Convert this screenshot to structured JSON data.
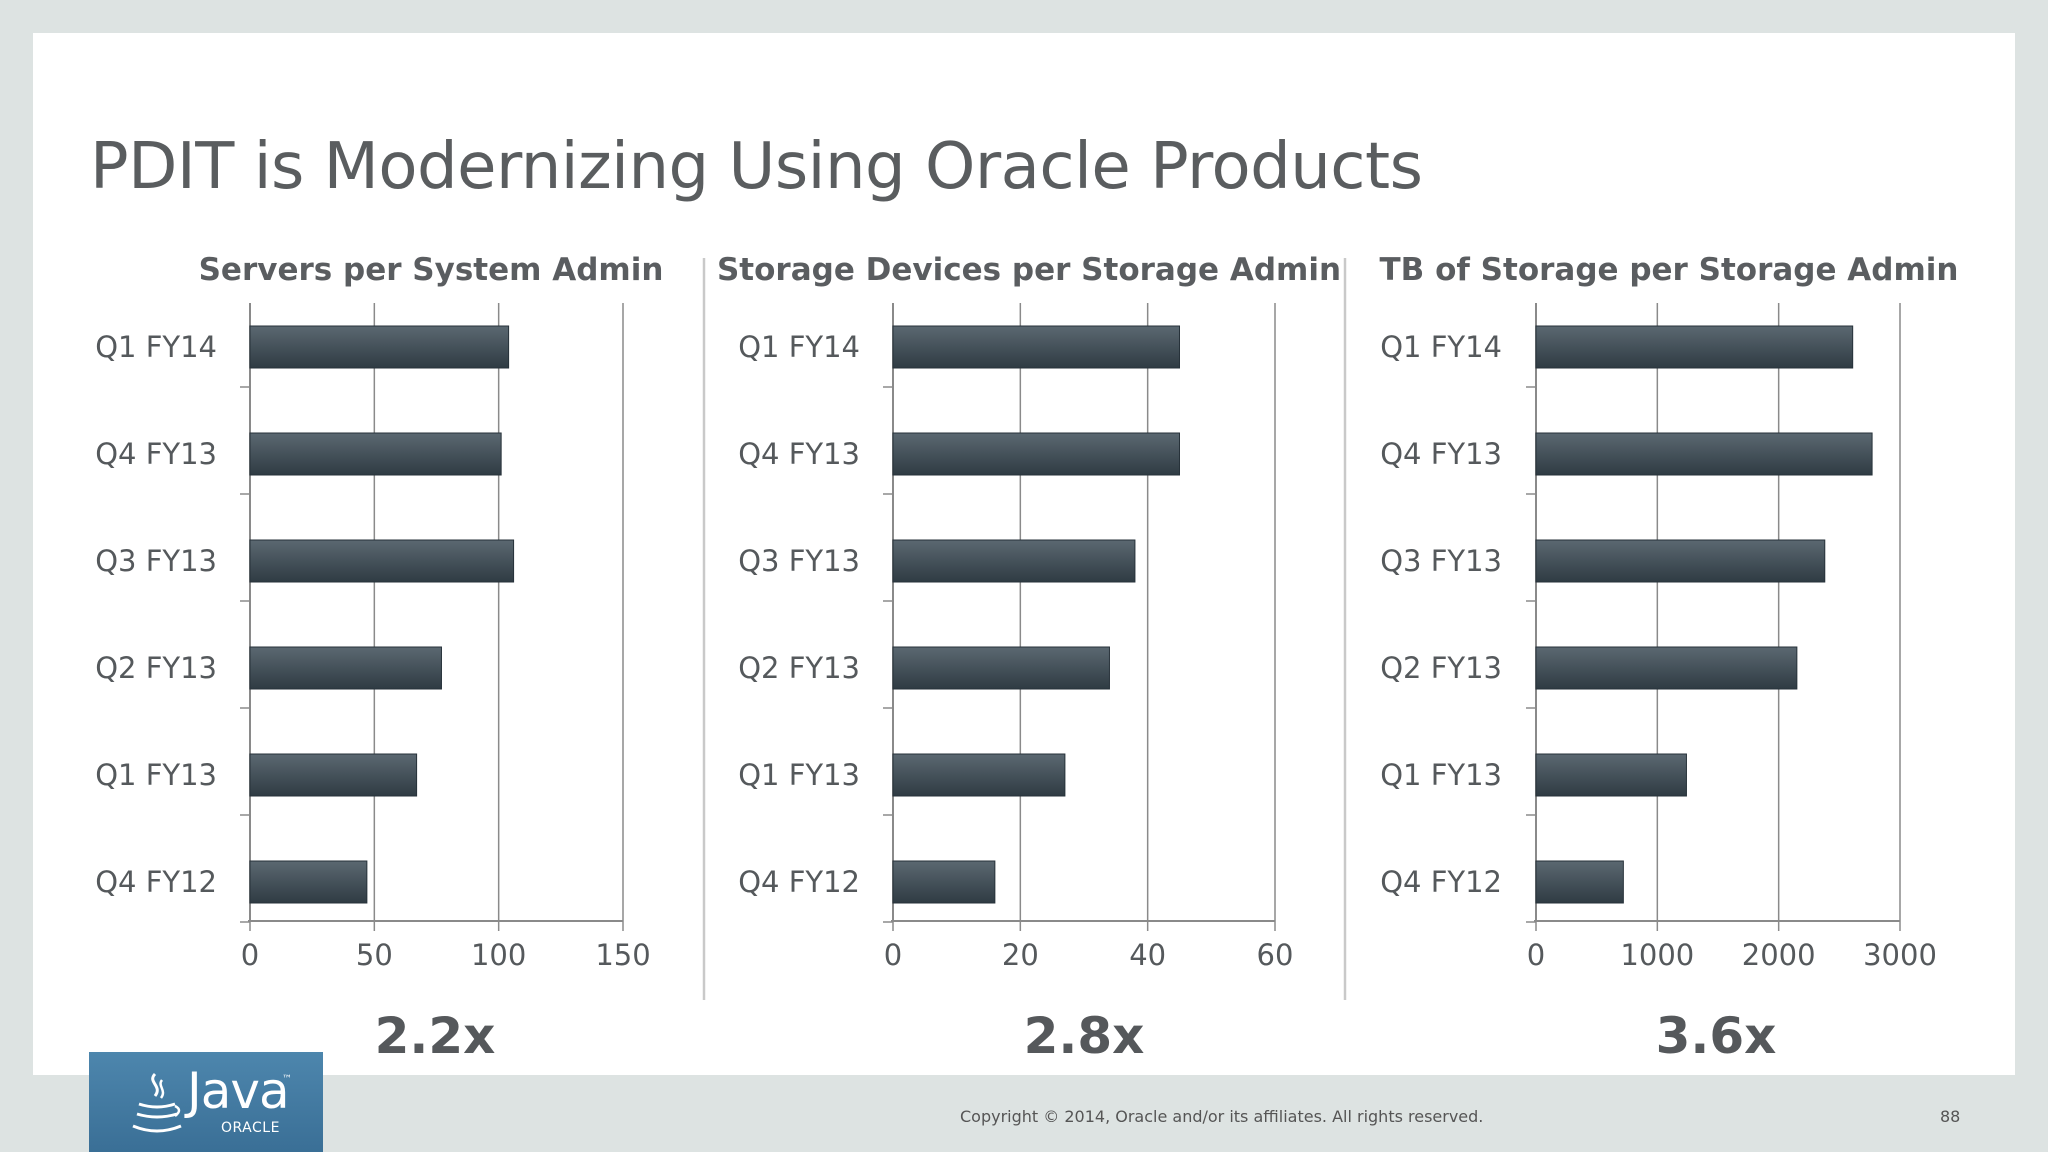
{
  "slide": {
    "title": "PDIT is Modernizing Using Oracle Products",
    "copyright": "Copyright © 2014, Oracle and/or its affiliates. All rights reserved.",
    "page_number": "88",
    "logo": {
      "java_text": "Java",
      "tm": "™",
      "oracle_text": "ORACLE",
      "icon": "java-cup-icon"
    }
  },
  "colors": {
    "bar": "#3a4750",
    "bar_light": "#58656e",
    "grid": "#8a8a8a",
    "text": "#55595c",
    "divider": "#c9c9c9"
  },
  "chart_data": [
    {
      "type": "bar",
      "orientation": "horizontal",
      "title": "Servers per System Admin",
      "categories": [
        "Q1 FY14",
        "Q4 FY13",
        "Q3 FY13",
        "Q2 FY13",
        "Q1 FY13",
        "Q4 FY12"
      ],
      "values": [
        104,
        101,
        106,
        77,
        67,
        47
      ],
      "xlim": [
        0,
        150
      ],
      "ticks": [
        0,
        50,
        100,
        150
      ],
      "multiplier": "2.2x"
    },
    {
      "type": "bar",
      "orientation": "horizontal",
      "title": "Storage Devices per Storage Admin",
      "categories": [
        "Q1 FY14",
        "Q4 FY13",
        "Q3 FY13",
        "Q2 FY13",
        "Q1 FY13",
        "Q4 FY12"
      ],
      "values": [
        45,
        45,
        38,
        34,
        27,
        16
      ],
      "xlim": [
        0,
        60
      ],
      "ticks": [
        0,
        20,
        40,
        60
      ],
      "multiplier": "2.8x"
    },
    {
      "type": "bar",
      "orientation": "horizontal",
      "title": "TB of Storage per Storage Admin",
      "categories": [
        "Q1 FY14",
        "Q4 FY13",
        "Q3 FY13",
        "Q2 FY13",
        "Q1 FY13",
        "Q4 FY12"
      ],
      "values": [
        2610,
        2770,
        2380,
        2150,
        1240,
        720
      ],
      "xlim": [
        0,
        3000
      ],
      "ticks": [
        0,
        1000,
        2000,
        3000
      ],
      "multiplier": "3.6x"
    }
  ]
}
